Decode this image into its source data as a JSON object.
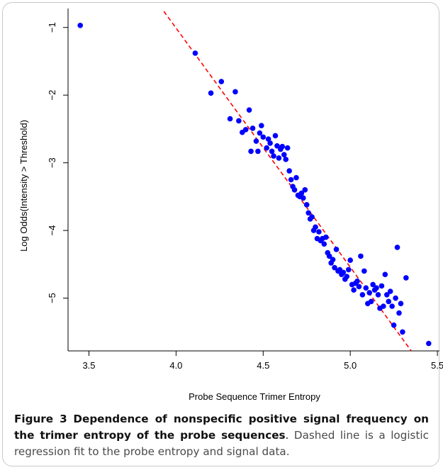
{
  "figure": {
    "label": "Figure 3",
    "title": "Dependence of nonspecific positive signal frequency on the trimer entropy of the probe sequences",
    "description": "Dashed line is a logistic regression fit to the probe entropy and signal data."
  },
  "chart_data": {
    "type": "scatter",
    "xlabel": "Probe Sequence Trimer Entropy",
    "ylabel": "Log Odds(Intensity > Threshold)",
    "xlim": [
      3.38,
      5.52
    ],
    "ylim": [
      -5.78,
      -0.72
    ],
    "xticks": [
      3.5,
      4.0,
      4.5,
      5.0,
      5.5
    ],
    "xtick_labels": [
      "3.5",
      "4.0",
      "4.5",
      "5.0",
      "5.5"
    ],
    "yticks": [
      -1,
      -2,
      -3,
      -4,
      -5
    ],
    "ytick_labels": [
      "−1",
      "−2",
      "−3",
      "−4",
      "−5"
    ],
    "grid": false,
    "legend": "none",
    "colors": {
      "points": "#0000ff",
      "fit_line": "#ff0000",
      "axes": "#000000"
    },
    "fit_line": {
      "style": "dashed",
      "x": [
        3.93,
        5.35
      ],
      "y": [
        -0.72,
        -5.78
      ]
    },
    "points": [
      [
        3.45,
        -0.97
      ],
      [
        4.11,
        -1.38
      ],
      [
        4.2,
        -1.97
      ],
      [
        4.26,
        -1.8
      ],
      [
        4.34,
        -1.95
      ],
      [
        4.31,
        -2.35
      ],
      [
        4.36,
        -2.38
      ],
      [
        4.38,
        -2.55
      ],
      [
        4.4,
        -2.51
      ],
      [
        4.42,
        -2.22
      ],
      [
        4.43,
        -2.83
      ],
      [
        4.44,
        -2.49
      ],
      [
        4.46,
        -2.68
      ],
      [
        4.47,
        -2.83
      ],
      [
        4.48,
        -2.56
      ],
      [
        4.49,
        -2.45
      ],
      [
        4.5,
        -2.62
      ],
      [
        4.52,
        -2.78
      ],
      [
        4.53,
        -2.65
      ],
      [
        4.54,
        -2.71
      ],
      [
        4.55,
        -2.83
      ],
      [
        4.56,
        -2.9
      ],
      [
        4.57,
        -2.6
      ],
      [
        4.58,
        -2.75
      ],
      [
        4.59,
        -2.93
      ],
      [
        4.6,
        -2.8
      ],
      [
        4.61,
        -2.76
      ],
      [
        4.62,
        -2.88
      ],
      [
        4.63,
        -2.95
      ],
      [
        4.64,
        -2.78
      ],
      [
        4.65,
        -3.12
      ],
      [
        4.66,
        -3.25
      ],
      [
        4.67,
        -3.35
      ],
      [
        4.68,
        -3.4
      ],
      [
        4.69,
        -3.22
      ],
      [
        4.7,
        -3.48
      ],
      [
        4.71,
        -3.5
      ],
      [
        4.72,
        -3.45
      ],
      [
        4.73,
        -3.52
      ],
      [
        4.74,
        -3.4
      ],
      [
        4.75,
        -3.62
      ],
      [
        4.76,
        -3.74
      ],
      [
        4.77,
        -3.83
      ],
      [
        4.78,
        -3.8
      ],
      [
        4.79,
        -4.0
      ],
      [
        4.8,
        -3.95
      ],
      [
        4.81,
        -4.12
      ],
      [
        4.82,
        -4.02
      ],
      [
        4.83,
        -4.15
      ],
      [
        4.84,
        -4.12
      ],
      [
        4.85,
        -4.2
      ],
      [
        4.86,
        -4.1
      ],
      [
        4.87,
        -4.33
      ],
      [
        4.88,
        -4.38
      ],
      [
        4.89,
        -4.48
      ],
      [
        4.9,
        -4.43
      ],
      [
        4.91,
        -4.55
      ],
      [
        4.92,
        -4.28
      ],
      [
        4.93,
        -4.6
      ],
      [
        4.94,
        -4.58
      ],
      [
        4.95,
        -4.65
      ],
      [
        4.96,
        -4.62
      ],
      [
        4.97,
        -4.72
      ],
      [
        4.98,
        -4.68
      ],
      [
        4.99,
        -4.58
      ],
      [
        5.0,
        -4.44
      ],
      [
        5.01,
        -4.8
      ],
      [
        5.02,
        -4.88
      ],
      [
        5.03,
        -4.78
      ],
      [
        5.04,
        -4.75
      ],
      [
        5.05,
        -4.83
      ],
      [
        5.06,
        -4.38
      ],
      [
        5.07,
        -4.95
      ],
      [
        5.08,
        -4.6
      ],
      [
        5.09,
        -4.85
      ],
      [
        5.1,
        -5.08
      ],
      [
        5.11,
        -4.92
      ],
      [
        5.12,
        -5.05
      ],
      [
        5.13,
        -4.8
      ],
      [
        5.14,
        -4.88
      ],
      [
        5.15,
        -4.85
      ],
      [
        5.16,
        -4.95
      ],
      [
        5.17,
        -5.15
      ],
      [
        5.18,
        -4.82
      ],
      [
        5.19,
        -5.12
      ],
      [
        5.2,
        -4.65
      ],
      [
        5.21,
        -4.95
      ],
      [
        5.22,
        -5.05
      ],
      [
        5.23,
        -4.9
      ],
      [
        5.24,
        -5.12
      ],
      [
        5.25,
        -5.4
      ],
      [
        5.26,
        -5.0
      ],
      [
        5.27,
        -4.25
      ],
      [
        5.28,
        -5.22
      ],
      [
        5.29,
        -5.08
      ],
      [
        5.3,
        -5.5
      ],
      [
        5.32,
        -4.7
      ],
      [
        5.45,
        -5.67
      ]
    ]
  }
}
